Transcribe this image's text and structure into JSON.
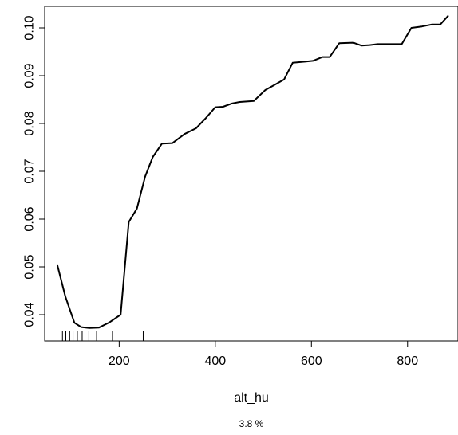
{
  "chart_data": {
    "type": "line",
    "xlabel": "alt_hu",
    "note": "3.8 %",
    "xlim": [
      45,
      905
    ],
    "ylim": [
      0.0345,
      0.1045
    ],
    "x_ticks": [
      200,
      400,
      600,
      800
    ],
    "x_tick_labels": [
      "200",
      "400",
      "600",
      "800"
    ],
    "y_ticks": [
      0.04,
      0.05,
      0.06,
      0.07,
      0.08,
      0.09,
      0.1
    ],
    "y_tick_labels": [
      "0.04",
      "0.05",
      "0.06",
      "0.07",
      "0.08",
      "0.09",
      "0.10"
    ],
    "grid": false,
    "line_color": "#000000",
    "series": [
      {
        "x": [
          71,
          88,
          107,
          121,
          138,
          158,
          180,
          203,
          220,
          237,
          254,
          270,
          289,
          311,
          336,
          360,
          380,
          400,
          416,
          435,
          451,
          480,
          504,
          522,
          543,
          561,
          603,
          623,
          638,
          658,
          687,
          704,
          721,
          738,
          788,
          808,
          830,
          850,
          868,
          885
        ],
        "y": [
          0.0505,
          0.0438,
          0.0383,
          0.0374,
          0.0372,
          0.0373,
          0.0384,
          0.04,
          0.0594,
          0.0622,
          0.0689,
          0.073,
          0.0758,
          0.0759,
          0.0778,
          0.079,
          0.0811,
          0.0834,
          0.0835,
          0.0842,
          0.0845,
          0.0847,
          0.087,
          0.088,
          0.0892,
          0.0927,
          0.0931,
          0.0939,
          0.0939,
          0.0968,
          0.0969,
          0.0963,
          0.0964,
          0.0966,
          0.0966,
          0.1,
          0.1003,
          0.1007,
          0.1007,
          0.1026
        ]
      }
    ],
    "rug": [
      82,
      89,
      97,
      104,
      113,
      123,
      137,
      153,
      186,
      250
    ]
  }
}
